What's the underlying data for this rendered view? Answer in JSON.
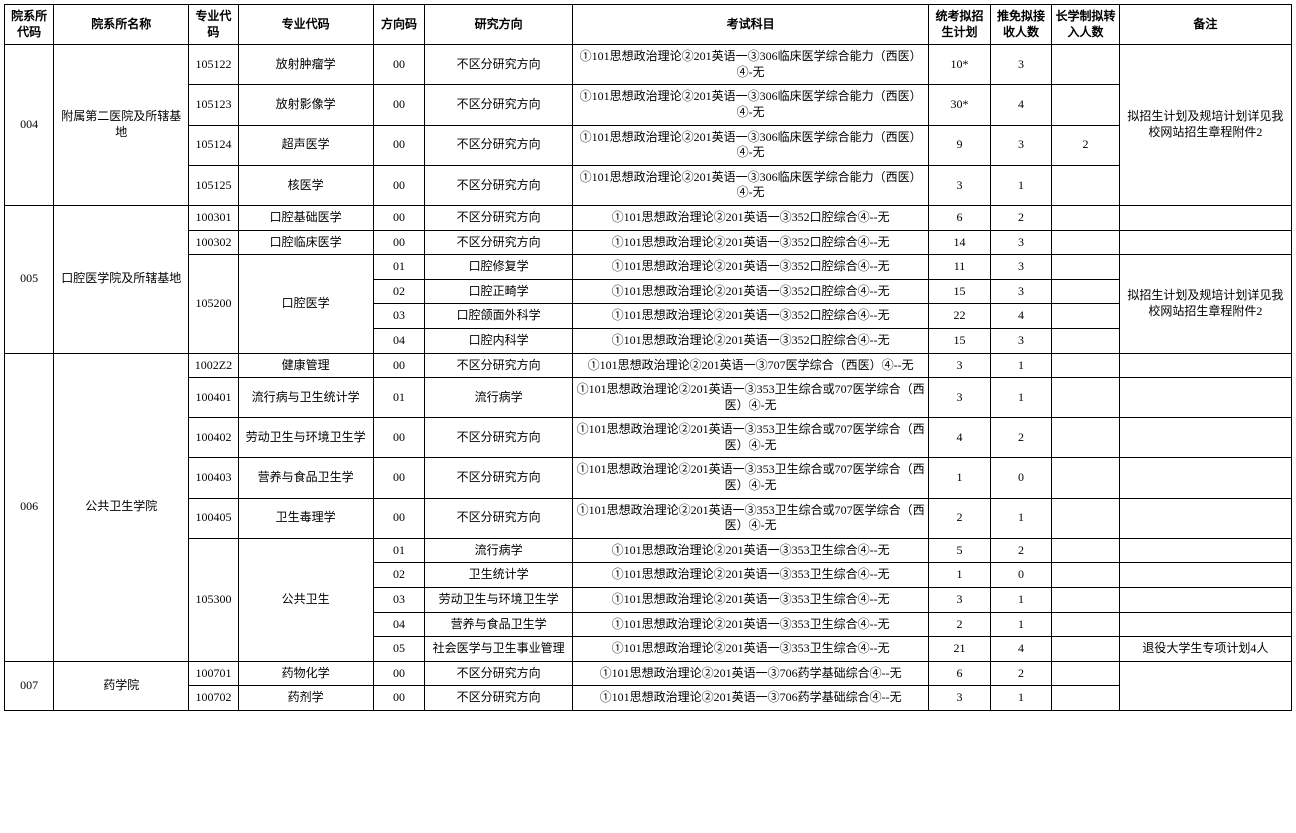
{
  "headers": {
    "dept_code": "院系所代码",
    "dept_name": "院系所名称",
    "major_code": "专业代码",
    "major_name": "专业代码",
    "dir_code": "方向码",
    "dir_name": "研究方向",
    "subjects": "考试科目",
    "plan": "统考拟招生计划",
    "rec": "推免拟接收人数",
    "long": "长学制拟转入人数",
    "remark": "备注"
  },
  "rows": [
    {
      "dept_code": "004",
      "dept_name": "附属第二医院及所辖基地",
      "major_code": "105122",
      "major_name": "放射肿瘤学",
      "dir_code": "00",
      "dir_name": "不区分研究方向",
      "subjects": "①101思想政治理论②201英语一③306临床医学综合能力（西医）④-无",
      "plan": "10*",
      "rec": "3",
      "long": "",
      "remark": "拟招生计划及规培计划详见我校网站招生章程附件2",
      "dept_rs": 4,
      "remark_rs": 4
    },
    {
      "major_code": "105123",
      "major_name": "放射影像学",
      "dir_code": "00",
      "dir_name": "不区分研究方向",
      "subjects": "①101思想政治理论②201英语一③306临床医学综合能力（西医）④-无",
      "plan": "30*",
      "rec": "4",
      "long": ""
    },
    {
      "major_code": "105124",
      "major_name": "超声医学",
      "dir_code": "00",
      "dir_name": "不区分研究方向",
      "subjects": "①101思想政治理论②201英语一③306临床医学综合能力（西医）④-无",
      "plan": "9",
      "rec": "3",
      "long": "2"
    },
    {
      "major_code": "105125",
      "major_name": "核医学",
      "dir_code": "00",
      "dir_name": "不区分研究方向",
      "subjects": "①101思想政治理论②201英语一③306临床医学综合能力（西医）④-无",
      "plan": "3",
      "rec": "1",
      "long": ""
    },
    {
      "dept_code": "005",
      "dept_name": "口腔医学院及所辖基地",
      "major_code": "100301",
      "major_name": "口腔基础医学",
      "dir_code": "00",
      "dir_name": "不区分研究方向",
      "subjects": "①101思想政治理论②201英语一③352口腔综合④--无",
      "plan": "6",
      "rec": "2",
      "long": "",
      "remark": "",
      "dept_rs": 6
    },
    {
      "major_code": "100302",
      "major_name": "口腔临床医学",
      "dir_code": "00",
      "dir_name": "不区分研究方向",
      "subjects": "①101思想政治理论②201英语一③352口腔综合④--无",
      "plan": "14",
      "rec": "3",
      "long": "",
      "remark": ""
    },
    {
      "major_code": "105200",
      "major_name": "口腔医学",
      "major_rs": 4,
      "dir_code": "01",
      "dir_name": "口腔修复学",
      "subjects": "①101思想政治理论②201英语一③352口腔综合④--无",
      "plan": "11",
      "rec": "3",
      "long": "",
      "remark": "拟招生计划及规培计划详见我校网站招生章程附件2",
      "remark_rs": 4
    },
    {
      "dir_code": "02",
      "dir_name": "口腔正畸学",
      "subjects": "①101思想政治理论②201英语一③352口腔综合④--无",
      "plan": "15",
      "rec": "3",
      "long": ""
    },
    {
      "dir_code": "03",
      "dir_name": "口腔颌面外科学",
      "subjects": "①101思想政治理论②201英语一③352口腔综合④--无",
      "plan": "22",
      "rec": "4",
      "long": ""
    },
    {
      "dir_code": "04",
      "dir_name": "口腔内科学",
      "subjects": "①101思想政治理论②201英语一③352口腔综合④--无",
      "plan": "15",
      "rec": "3",
      "long": ""
    },
    {
      "dept_code": "006",
      "dept_name": "公共卫生学院",
      "major_code": "1002Z2",
      "major_name": "健康管理",
      "dir_code": "00",
      "dir_name": "不区分研究方向",
      "subjects": "①101思想政治理论②201英语一③707医学综合（西医）④--无",
      "plan": "3",
      "rec": "1",
      "long": "",
      "remark": "",
      "dept_rs": 10
    },
    {
      "major_code": "100401",
      "major_name": "流行病与卫生统计学",
      "dir_code": "01",
      "dir_name": "流行病学",
      "subjects": "①101思想政治理论②201英语一③353卫生综合或707医学综合（西医）④-无",
      "plan": "3",
      "rec": "1",
      "long": "",
      "remark": ""
    },
    {
      "major_code": "100402",
      "major_name": "劳动卫生与环境卫生学",
      "dir_code": "00",
      "dir_name": "不区分研究方向",
      "subjects": "①101思想政治理论②201英语一③353卫生综合或707医学综合（西医）④-无",
      "plan": "4",
      "rec": "2",
      "long": "",
      "remark": ""
    },
    {
      "major_code": "100403",
      "major_name": "营养与食品卫生学",
      "dir_code": "00",
      "dir_name": "不区分研究方向",
      "subjects": "①101思想政治理论②201英语一③353卫生综合或707医学综合（西医）④-无",
      "plan": "1",
      "rec": "0",
      "long": "",
      "remark": ""
    },
    {
      "major_code": "100405",
      "major_name": "卫生毒理学",
      "dir_code": "00",
      "dir_name": "不区分研究方向",
      "subjects": "①101思想政治理论②201英语一③353卫生综合或707医学综合（西医）④-无",
      "plan": "2",
      "rec": "1",
      "long": "",
      "remark": ""
    },
    {
      "major_code": "105300",
      "major_name": "公共卫生",
      "major_rs": 5,
      "dir_code": "01",
      "dir_name": "流行病学",
      "subjects": "①101思想政治理论②201英语一③353卫生综合④--无",
      "plan": "5",
      "rec": "2",
      "long": "",
      "remark": ""
    },
    {
      "dir_code": "02",
      "dir_name": "卫生统计学",
      "subjects": "①101思想政治理论②201英语一③353卫生综合④--无",
      "plan": "1",
      "rec": "0",
      "long": "",
      "remark": ""
    },
    {
      "dir_code": "03",
      "dir_name": "劳动卫生与环境卫生学",
      "subjects": "①101思想政治理论②201英语一③353卫生综合④--无",
      "plan": "3",
      "rec": "1",
      "long": "",
      "remark": ""
    },
    {
      "dir_code": "04",
      "dir_name": "营养与食品卫生学",
      "subjects": "①101思想政治理论②201英语一③353卫生综合④--无",
      "plan": "2",
      "rec": "1",
      "long": "",
      "remark": ""
    },
    {
      "dir_code": "05",
      "dir_name": "社会医学与卫生事业管理",
      "subjects": "①101思想政治理论②201英语一③353卫生综合④--无",
      "plan": "21",
      "rec": "4",
      "long": "",
      "remark": "退役大学生专项计划4人"
    },
    {
      "dept_code": "007",
      "dept_name": "药学院",
      "major_code": "100701",
      "major_name": "药物化学",
      "dir_code": "00",
      "dir_name": "不区分研究方向",
      "subjects": "①101思想政治理论②201英语一③706药学基础综合④--无",
      "plan": "6",
      "rec": "2",
      "long": "",
      "remark": "",
      "dept_rs": 2,
      "remark_rs": 2
    },
    {
      "major_code": "100702",
      "major_name": "药剂学",
      "dir_code": "00",
      "dir_name": "不区分研究方向",
      "subjects": "①101思想政治理论②201英语一③706药学基础综合④--无",
      "plan": "3",
      "rec": "1",
      "long": ""
    }
  ]
}
